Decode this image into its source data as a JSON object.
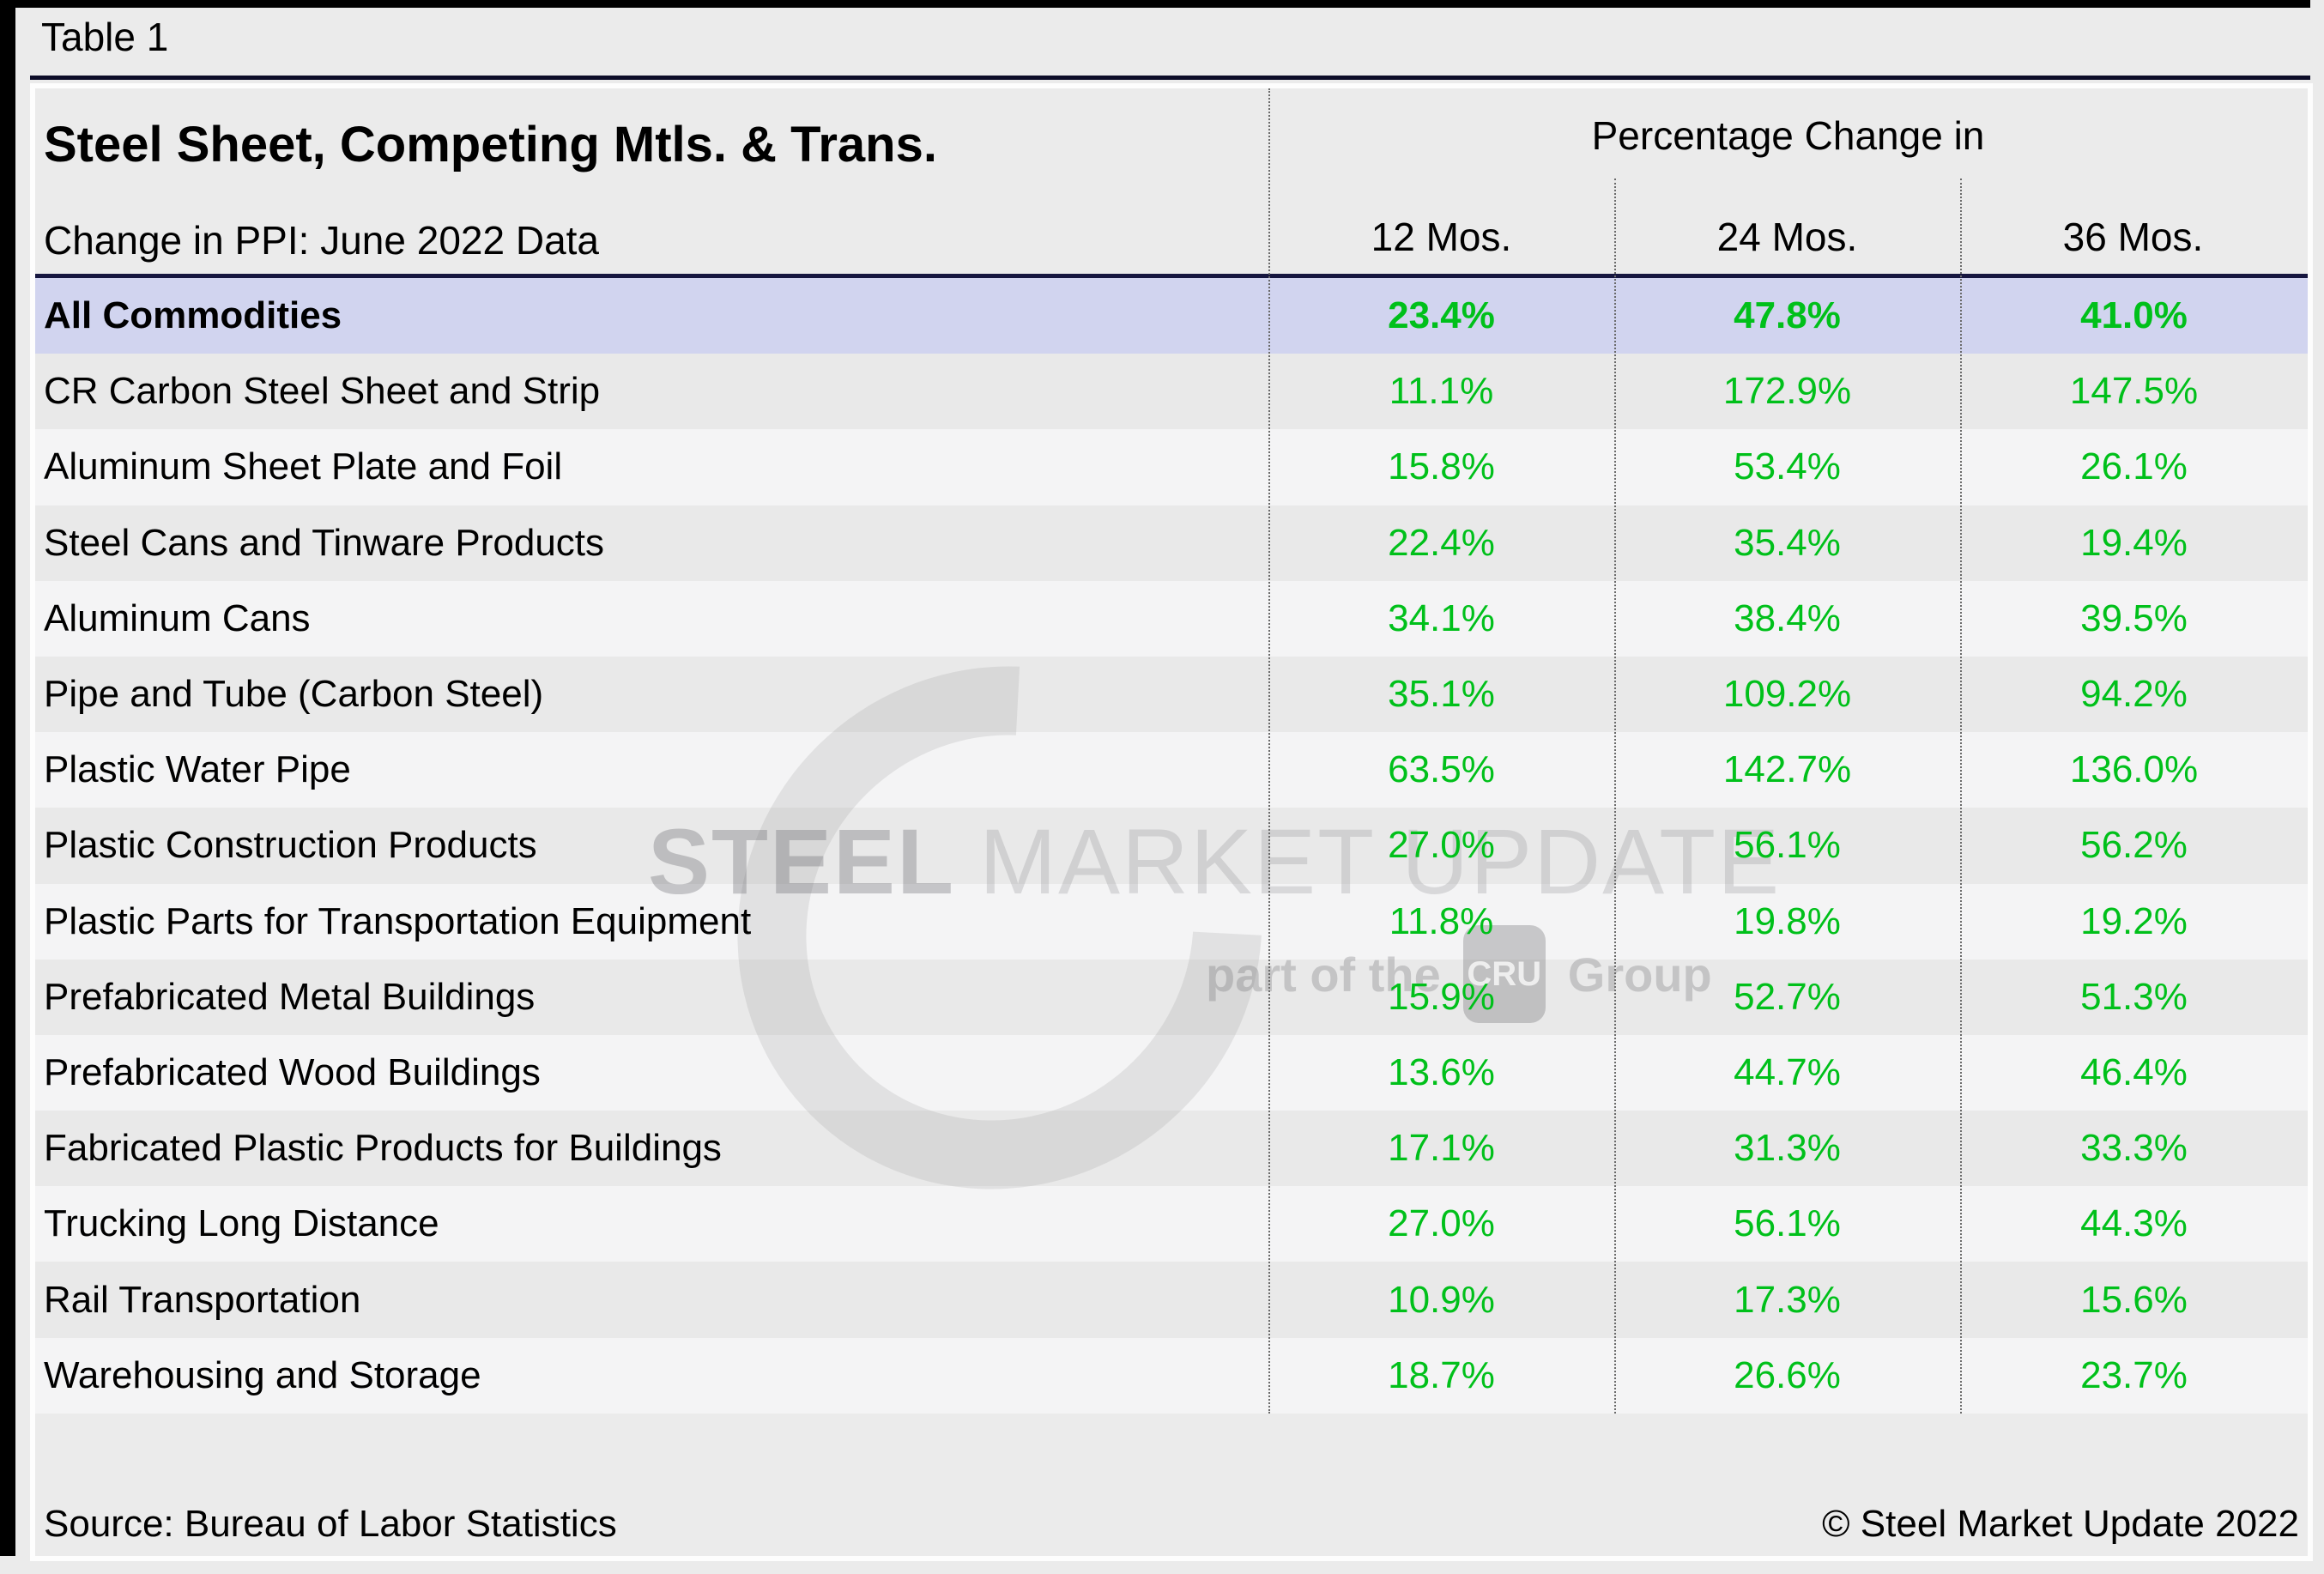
{
  "page": {
    "table_label": "Table 1"
  },
  "table": {
    "title": "Steel Sheet, Competing Mtls. & Trans.",
    "subtitle": "Change in PPI: June 2022 Data",
    "col_group_label": "Percentage Change in",
    "columns": [
      "12 Mos.",
      "24 Mos.",
      "36 Mos."
    ],
    "rows": [
      {
        "label": "All Commodities",
        "values": [
          "23.4%",
          "47.8%",
          "41.0%"
        ],
        "highlight": true
      },
      {
        "label": "CR Carbon Steel Sheet and Strip",
        "values": [
          "11.1%",
          "172.9%",
          "147.5%"
        ],
        "highlight": false
      },
      {
        "label": "Aluminum Sheet Plate and Foil",
        "values": [
          "15.8%",
          "53.4%",
          "26.1%"
        ],
        "highlight": false
      },
      {
        "label": "Steel Cans and Tinware Products",
        "values": [
          "22.4%",
          "35.4%",
          "19.4%"
        ],
        "highlight": false
      },
      {
        "label": "Aluminum Cans",
        "values": [
          "34.1%",
          "38.4%",
          "39.5%"
        ],
        "highlight": false
      },
      {
        "label": "Pipe and Tube (Carbon Steel)",
        "values": [
          "35.1%",
          "109.2%",
          "94.2%"
        ],
        "highlight": false
      },
      {
        "label": "Plastic Water Pipe",
        "values": [
          "63.5%",
          "142.7%",
          "136.0%"
        ],
        "highlight": false
      },
      {
        "label": "Plastic Construction Products",
        "values": [
          "27.0%",
          "56.1%",
          "56.2%"
        ],
        "highlight": false
      },
      {
        "label": "Plastic Parts for Transportation Equipment",
        "values": [
          "11.8%",
          "19.8%",
          "19.2%"
        ],
        "highlight": false
      },
      {
        "label": "Prefabricated Metal Buildings",
        "values": [
          "15.9%",
          "52.7%",
          "51.3%"
        ],
        "highlight": false
      },
      {
        "label": "Prefabricated Wood Buildings",
        "values": [
          "13.6%",
          "44.7%",
          "46.4%"
        ],
        "highlight": false
      },
      {
        "label": "Fabricated Plastic Products for Buildings",
        "values": [
          "17.1%",
          "31.3%",
          "33.3%"
        ],
        "highlight": false
      },
      {
        "label": "Trucking Long Distance",
        "values": [
          "27.0%",
          "56.1%",
          "44.3%"
        ],
        "highlight": false
      },
      {
        "label": "Rail Transportation",
        "values": [
          "10.9%",
          "17.3%",
          "15.6%"
        ],
        "highlight": false
      },
      {
        "label": "Warehousing and Storage",
        "values": [
          "18.7%",
          "26.6%",
          "23.7%"
        ],
        "highlight": false
      }
    ]
  },
  "footer": {
    "source": "Source: Bureau of Labor Statistics",
    "copyright": "© Steel Market Update 2022"
  },
  "watermark": {
    "word1": "STEEL",
    "word2": "MARKET UPDATE",
    "tagline_prefix": "part of the",
    "badge": "CRU",
    "tagline_suffix": "Group"
  },
  "colors": {
    "value_green": "#00c01a",
    "highlight_row_bg": "#d1d4ef",
    "navy_rule": "#16163f",
    "row_alt_dark": "#e9e9e9",
    "row_alt_light": "#f4f4f5",
    "page_bg": "#ebebeb"
  },
  "chart_data": {
    "type": "table",
    "title": "Steel Sheet, Competing Mtls. & Trans. — Change in PPI: June 2022 Data",
    "col_group": "Percentage Change in",
    "categories": [
      "All Commodities",
      "CR Carbon Steel Sheet and Strip",
      "Aluminum Sheet Plate and Foil",
      "Steel Cans and Tinware Products",
      "Aluminum Cans",
      "Pipe and Tube (Carbon Steel)",
      "Plastic Water Pipe",
      "Plastic Construction Products",
      "Plastic Parts for Transportation Equipment",
      "Prefabricated Metal Buildings",
      "Prefabricated Wood Buildings",
      "Fabricated Plastic Products for Buildings",
      "Trucking Long Distance",
      "Rail Transportation",
      "Warehousing and Storage"
    ],
    "series": [
      {
        "name": "12 Mos.",
        "values": [
          23.4,
          11.1,
          15.8,
          22.4,
          34.1,
          35.1,
          63.5,
          27.0,
          11.8,
          15.9,
          13.6,
          17.1,
          27.0,
          10.9,
          18.7
        ]
      },
      {
        "name": "24 Mos.",
        "values": [
          47.8,
          172.9,
          53.4,
          35.4,
          38.4,
          109.2,
          142.7,
          56.1,
          19.8,
          52.7,
          44.7,
          31.3,
          56.1,
          17.3,
          26.6
        ]
      },
      {
        "name": "36 Mos.",
        "values": [
          41.0,
          147.5,
          26.1,
          19.4,
          39.5,
          94.2,
          136.0,
          56.2,
          19.2,
          51.3,
          46.4,
          33.3,
          44.3,
          15.6,
          23.7
        ]
      }
    ],
    "units": "percent",
    "source": "Bureau of Labor Statistics"
  }
}
